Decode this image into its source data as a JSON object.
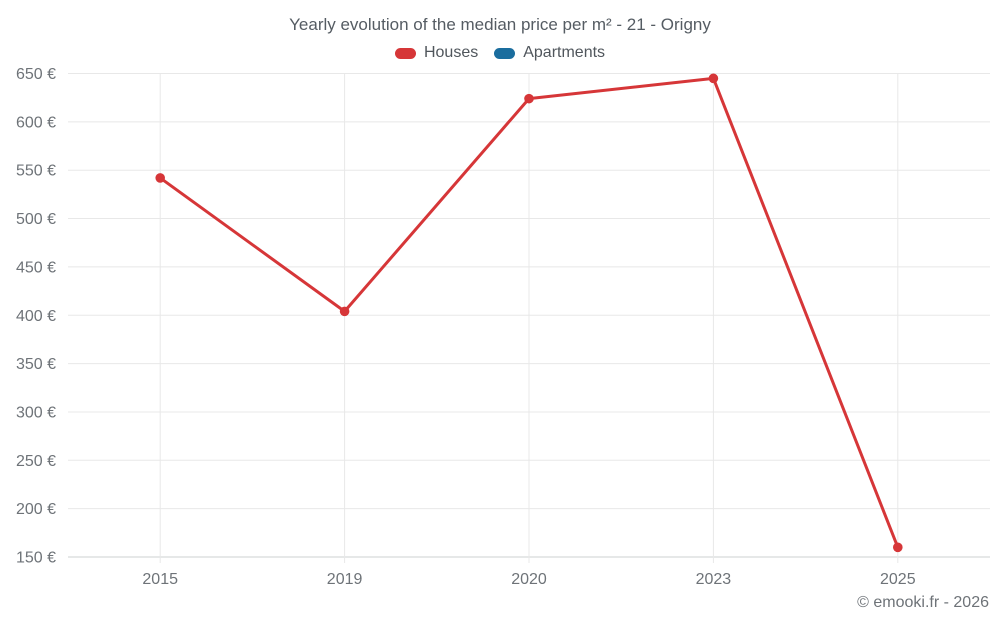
{
  "chart_data": {
    "type": "line",
    "title": "Yearly evolution of the median price per m² - 21 - Origny",
    "categories": [
      "2015",
      "2019",
      "2020",
      "2023",
      "2025"
    ],
    "series": [
      {
        "name": "Houses",
        "color": "#d63638",
        "values": [
          542,
          404,
          624,
          645,
          160
        ]
      },
      {
        "name": "Apartments",
        "color": "#1a6d9e",
        "values": []
      }
    ],
    "ylim": [
      150,
      650
    ],
    "ytick_step": 50,
    "ytick_suffix": " €",
    "grid": true,
    "legend_position": "top"
  },
  "footer": {
    "copyright": "© emooki.fr - 2026"
  }
}
